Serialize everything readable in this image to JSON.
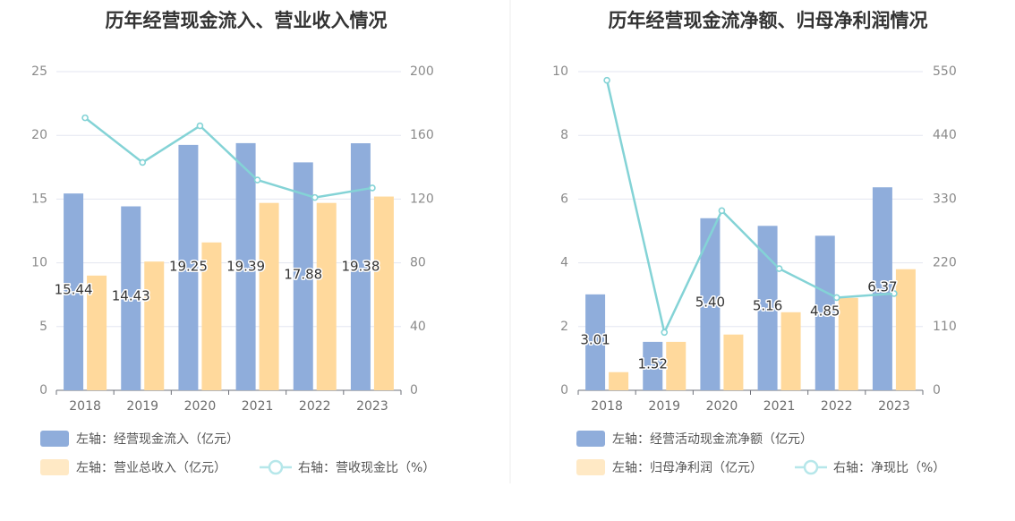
{
  "chart_data": [
    {
      "type": "bar",
      "title": "历年经营现金流入、营业收入情况",
      "categories": [
        "2018",
        "2019",
        "2020",
        "2021",
        "2022",
        "2023"
      ],
      "y_left": {
        "range": [
          0,
          25
        ],
        "ticks": [
          "0",
          "5",
          "10",
          "15",
          "20",
          "25"
        ]
      },
      "y_right": {
        "range": [
          0,
          200
        ],
        "ticks": [
          "0",
          "40",
          "80",
          "120",
          "160",
          "200"
        ]
      },
      "series": [
        {
          "name": "左轴：经营现金流入（亿元）",
          "axis": "left",
          "kind": "bar",
          "color": "#8faddb",
          "values": [
            15.44,
            14.43,
            19.25,
            19.39,
            17.88,
            19.38
          ],
          "labels": [
            "15.44",
            "14.43",
            "19.25",
            "19.39",
            "17.88",
            "19.38"
          ]
        },
        {
          "name": "左轴：营业总收入（亿元）",
          "axis": "left",
          "kind": "bar",
          "color": "#ffd99c",
          "values": [
            9.0,
            10.1,
            11.6,
            14.7,
            14.7,
            15.2
          ]
        },
        {
          "name": "右轴：营收现金比（%）",
          "axis": "right",
          "kind": "line",
          "color": "#84d3d6",
          "values": [
            171,
            143,
            166,
            132,
            121,
            127
          ]
        }
      ],
      "grid": true,
      "legend_position": "bottom-left"
    },
    {
      "type": "bar",
      "title": "历年经营现金流净额、归母净利润情况",
      "categories": [
        "2018",
        "2019",
        "2020",
        "2021",
        "2022",
        "2023"
      ],
      "y_left": {
        "range": [
          0,
          10
        ],
        "ticks": [
          "0",
          "2",
          "4",
          "6",
          "8",
          "10"
        ]
      },
      "y_right": {
        "range": [
          0,
          550
        ],
        "ticks": [
          "0",
          "110",
          "220",
          "330",
          "440",
          "550"
        ]
      },
      "series": [
        {
          "name": "左轴：经营活动现金流净额（亿元）",
          "axis": "left",
          "kind": "bar",
          "color": "#8faddb",
          "values": [
            3.01,
            1.52,
            5.4,
            5.16,
            4.85,
            6.37
          ],
          "labels": [
            "3.01",
            "1.52",
            "5.40",
            "5.16",
            "4.85",
            "6.37"
          ]
        },
        {
          "name": "左轴：归母净利润（亿元）",
          "axis": "left",
          "kind": "bar",
          "color": "#ffd99c",
          "values": [
            0.57,
            1.52,
            1.75,
            2.45,
            2.9,
            3.8
          ]
        },
        {
          "name": "右轴：净现比（%）",
          "axis": "right",
          "kind": "line",
          "color": "#84d3d6",
          "values": [
            535,
            100,
            310,
            210,
            160,
            167
          ]
        }
      ],
      "grid": true,
      "legend_position": "bottom-left"
    }
  ]
}
